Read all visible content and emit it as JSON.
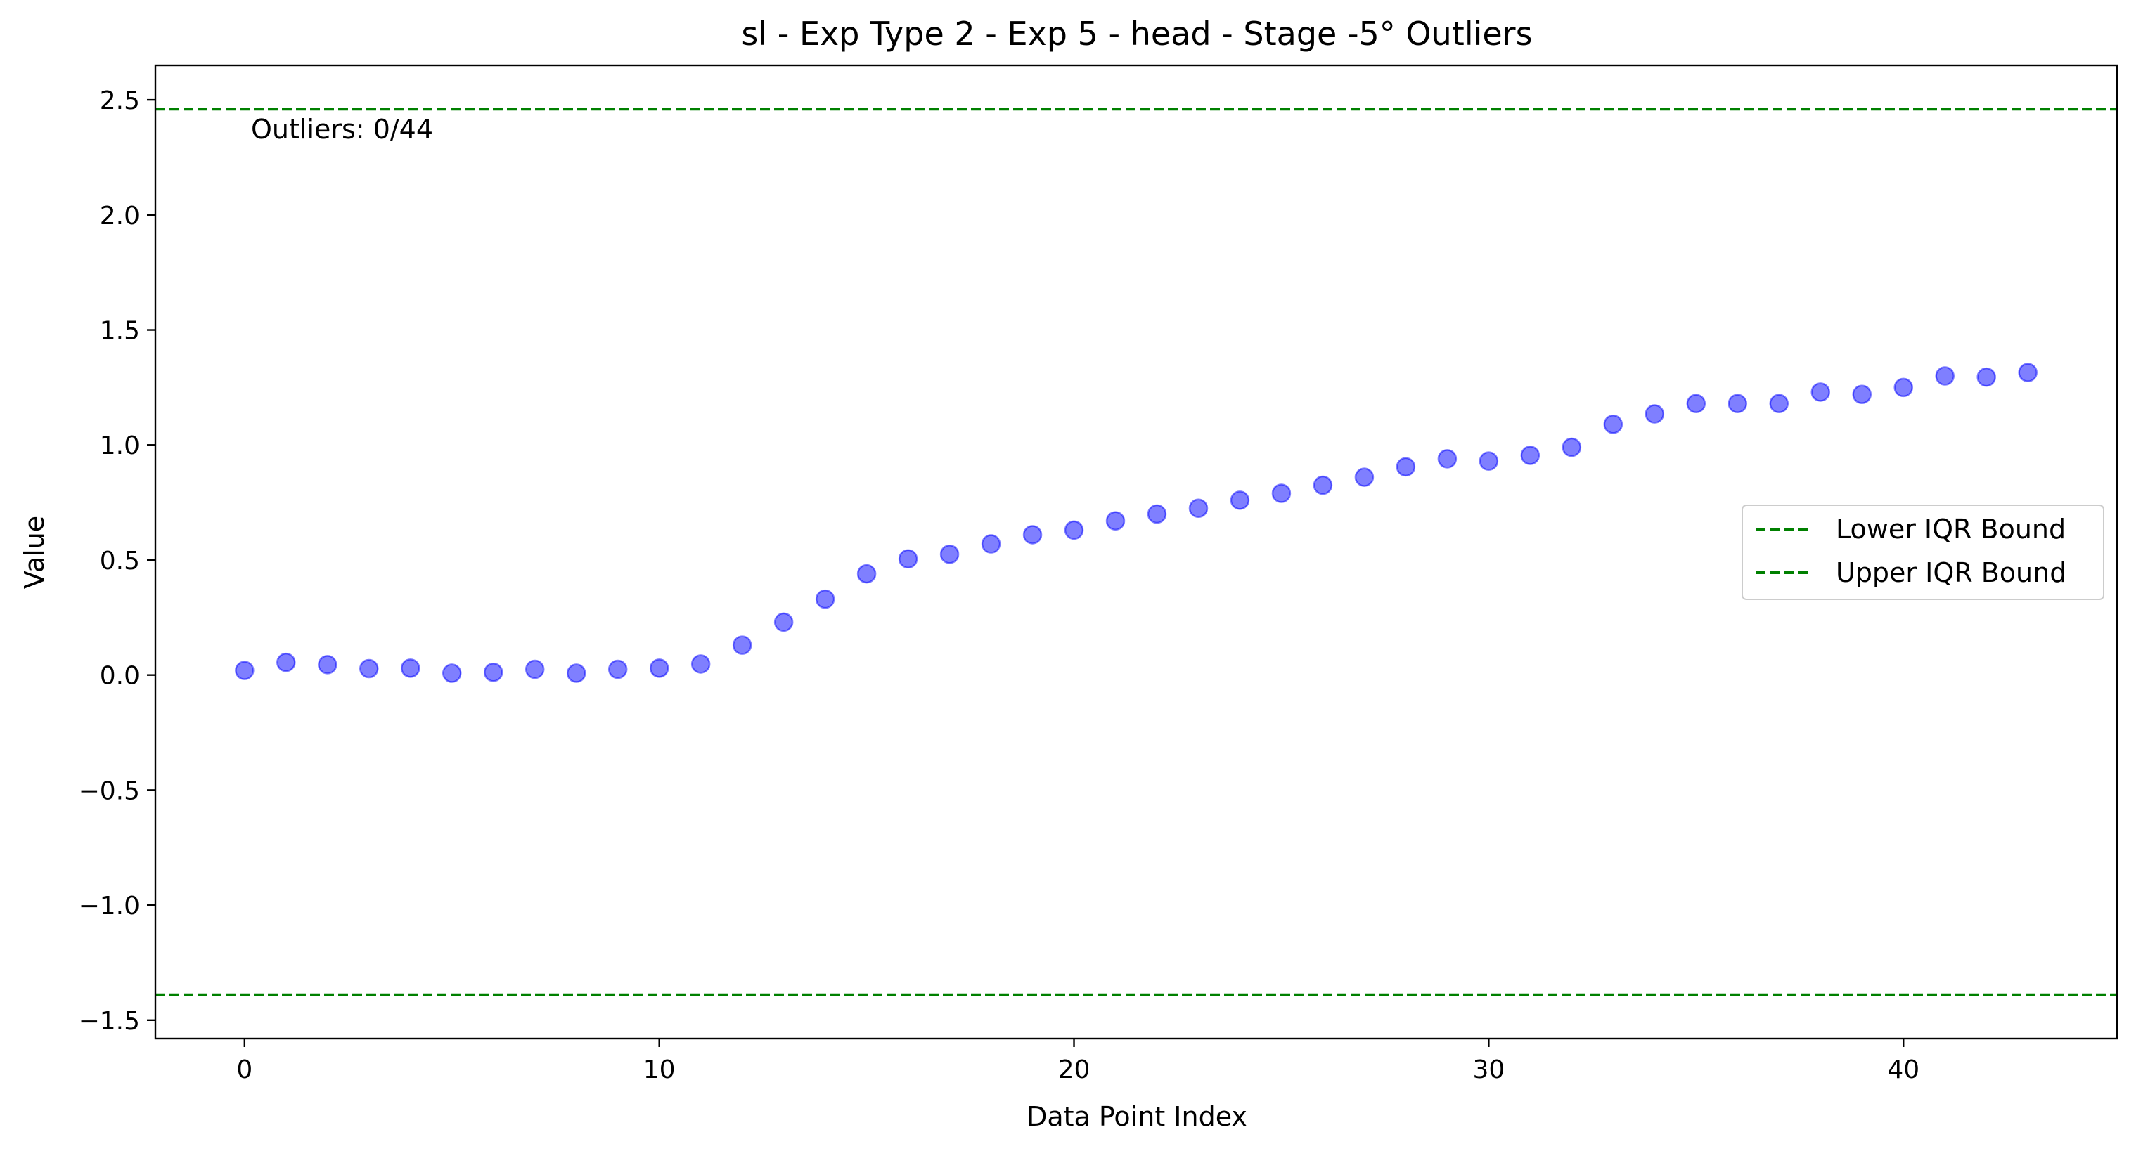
{
  "chart_data": {
    "type": "scatter",
    "title": "sl - Exp Type 2 - Exp 5 - head - Stage -5° Outliers",
    "xlabel": "Data Point Index",
    "ylabel": "Value",
    "xlim": [
      -2.15,
      45.15
    ],
    "ylim": [
      -1.58,
      2.65
    ],
    "x_ticks": [
      0,
      10,
      20,
      30,
      40
    ],
    "y_ticks": [
      -1.5,
      -1.0,
      -0.5,
      0.0,
      0.5,
      1.0,
      1.5,
      2.0,
      2.5
    ],
    "x_tick_labels": [
      "0",
      "10",
      "20",
      "30",
      "40"
    ],
    "y_tick_labels": [
      "−1.5",
      "−1.0",
      "−0.5",
      "0.0",
      "0.5",
      "1.0",
      "1.5",
      "2.0",
      "2.5"
    ],
    "grid": false,
    "series": [
      {
        "color": "#0000ff",
        "x": [
          0,
          1,
          2,
          3,
          4,
          5,
          6,
          7,
          8,
          9,
          10,
          11,
          12,
          13,
          14,
          15,
          16,
          17,
          18,
          19,
          20,
          21,
          22,
          23,
          24,
          25,
          26,
          27,
          28,
          29,
          30,
          31,
          32,
          33,
          34,
          35,
          36,
          37,
          38,
          39,
          40,
          41,
          42,
          43
        ],
        "y": [
          0.02,
          0.055,
          0.045,
          0.028,
          0.03,
          0.008,
          0.012,
          0.025,
          0.008,
          0.025,
          0.03,
          0.048,
          0.13,
          0.23,
          0.33,
          0.44,
          0.505,
          0.525,
          0.57,
          0.61,
          0.63,
          0.67,
          0.7,
          0.725,
          0.76,
          0.79,
          0.825,
          0.86,
          0.905,
          0.94,
          0.93,
          0.955,
          0.99,
          1.09,
          1.135,
          1.18,
          1.18,
          1.18,
          1.23,
          1.22,
          1.25,
          1.3,
          1.295,
          1.315
        ]
      }
    ],
    "reference_lines": [
      {
        "name": "Lower IQR Bound",
        "y": -1.39,
        "color": "#008000",
        "style": "dashed"
      },
      {
        "name": "Upper IQR Bound",
        "y": 2.46,
        "color": "#008000",
        "style": "dashed"
      }
    ],
    "annotation": "Outliers: 0/44",
    "legend_placement": "center-right"
  }
}
